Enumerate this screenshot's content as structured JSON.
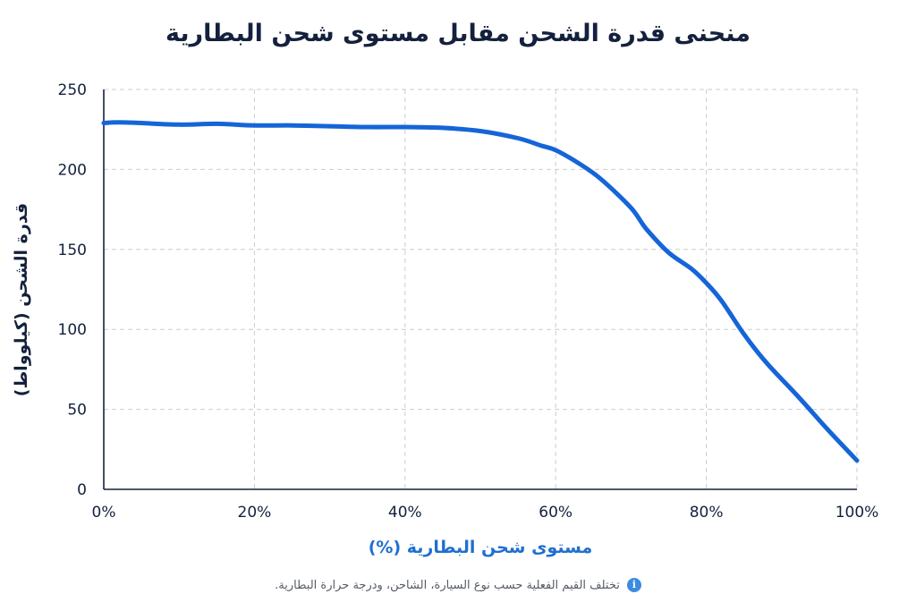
{
  "chart_data": {
    "type": "line",
    "title": "منحنى قدرة الشحن مقابل مستوى شحن البطارية",
    "xlabel": "مستوى شحن البطارية (%)",
    "ylabel": "قدرة الشحن (كيلوواط)",
    "xlim": [
      0,
      100
    ],
    "ylim": [
      0,
      250
    ],
    "x_ticks": [
      "0%",
      "20%",
      "40%",
      "60%",
      "80%",
      "100%"
    ],
    "x_tick_values": [
      0,
      20,
      40,
      60,
      80,
      100
    ],
    "y_ticks": [
      "0",
      "50",
      "100",
      "150",
      "200",
      "250"
    ],
    "y_tick_values": [
      0,
      50,
      100,
      150,
      200,
      250
    ],
    "grid": true,
    "line_color": "#1565d8",
    "series": [
      {
        "x": [
          0,
          2,
          5,
          10,
          15,
          20,
          25,
          30,
          35,
          40,
          45,
          50,
          55,
          58,
          60,
          63,
          66,
          70,
          72,
          75,
          78,
          80,
          82,
          85,
          88,
          92,
          96,
          100
        ],
        "y": [
          229,
          229.5,
          229,
          228,
          228.5,
          227.5,
          227.5,
          227,
          226.5,
          226.5,
          226,
          224,
          219.5,
          215,
          212,
          204,
          194,
          176,
          163,
          148,
          138,
          129,
          118,
          97,
          79,
          59,
          38,
          18
        ]
      }
    ]
  },
  "footnote": {
    "text": "تختلف القيم الفعلية حسب نوع السيارة، الشاحن، ودرجة حرارة البطارية.",
    "icon": "info-icon"
  }
}
